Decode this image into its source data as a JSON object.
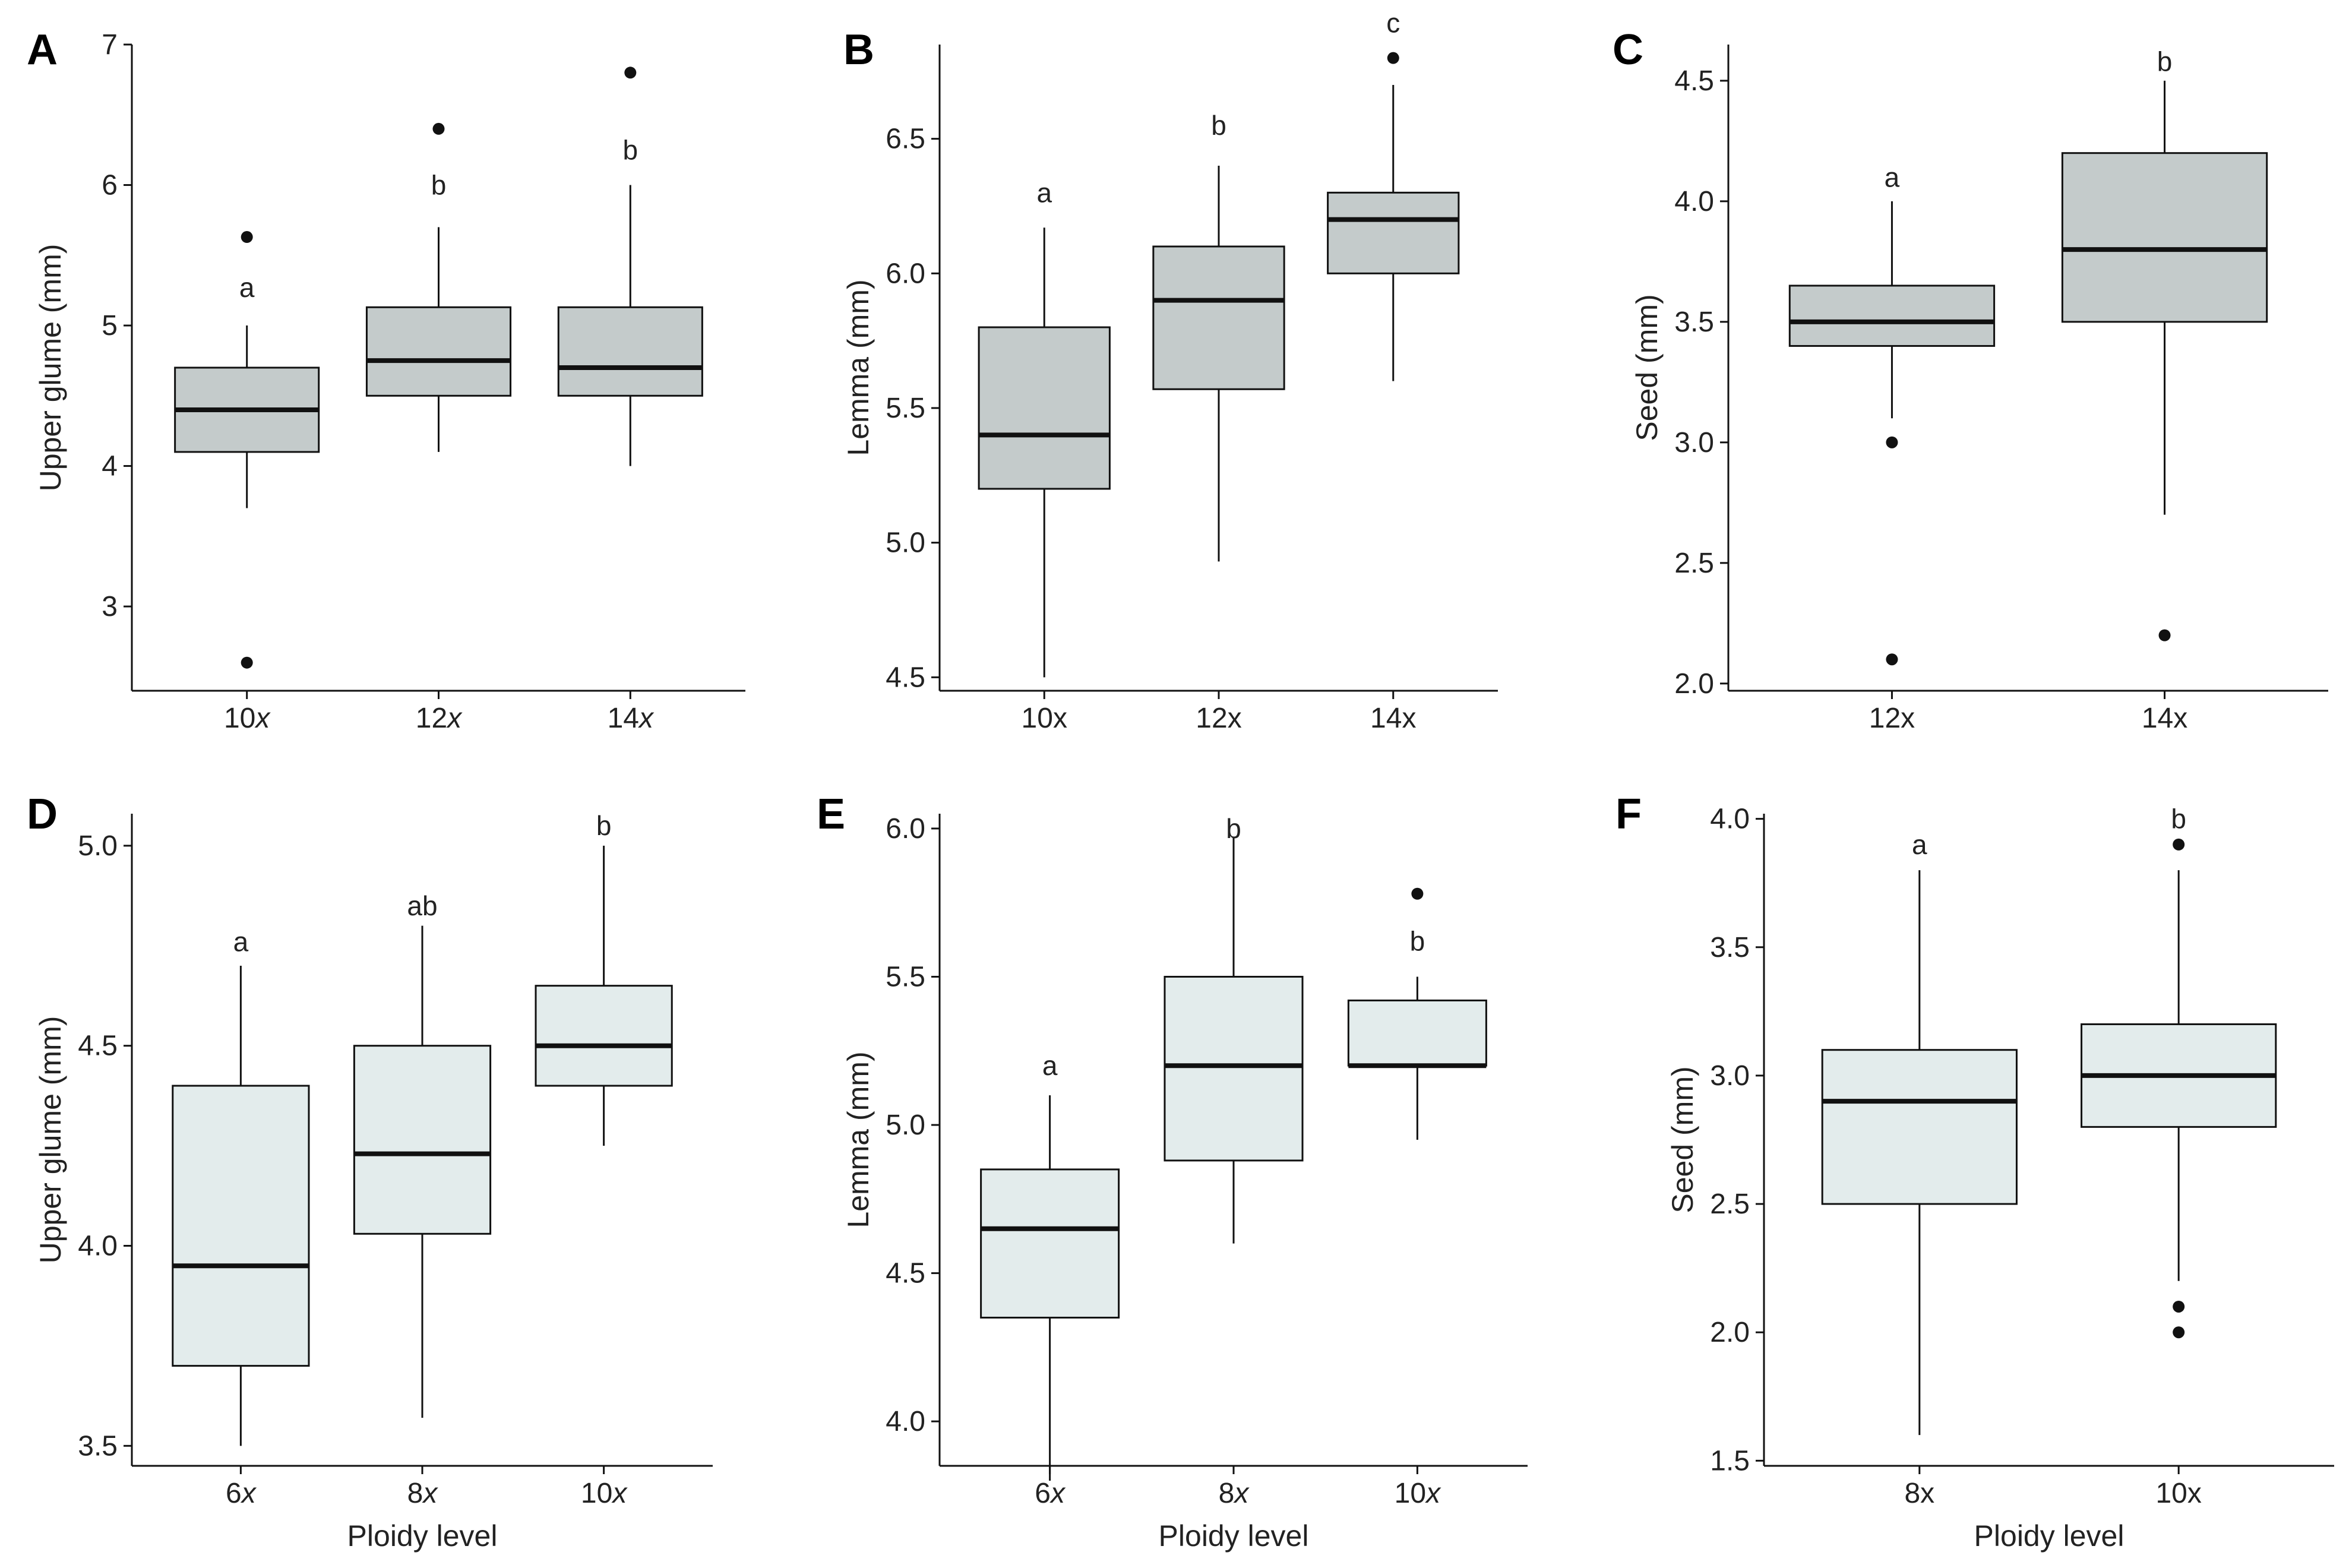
{
  "colors": {
    "top_box_fill": "#c4cbcb",
    "bottom_box_fill": "#e3ecec",
    "stroke": "#111111"
  },
  "chart_data": [
    {
      "type": "box",
      "panel_label": "A",
      "ylabel": "Upper glume (mm)",
      "xlabel": "",
      "ylim": [
        2.4,
        7.0
      ],
      "yticks": [
        3,
        4,
        5,
        6,
        7
      ],
      "ytick_labels": [
        "3",
        "4",
        "5",
        "6",
        "7"
      ],
      "categories": [
        {
          "label": "10",
          "suffix": "x"
        },
        {
          "label": "12",
          "suffix": "x"
        },
        {
          "label": "14",
          "suffix": "x"
        }
      ],
      "boxes": [
        {
          "whisker_low": 3.7,
          "q1": 4.1,
          "median": 4.4,
          "q3": 4.7,
          "whisker_high": 5.0,
          "outliers": [
            5.63,
            2.6
          ],
          "sig": "a",
          "sig_y": 5.27
        },
        {
          "whisker_low": 4.1,
          "q1": 4.5,
          "median": 4.75,
          "q3": 5.13,
          "whisker_high": 5.7,
          "outliers": [
            6.4
          ],
          "sig": "b",
          "sig_y": 6.0
        },
        {
          "whisker_low": 4.0,
          "q1": 4.5,
          "median": 4.7,
          "q3": 5.13,
          "whisker_high": 6.0,
          "outliers": [
            6.8
          ],
          "sig": "b",
          "sig_y": 6.25
        }
      ]
    },
    {
      "type": "box",
      "panel_label": "B",
      "ylabel": "Lemma (mm)",
      "xlabel": "",
      "ylim": [
        4.45,
        6.85
      ],
      "yticks": [
        4.5,
        5.0,
        5.5,
        6.0,
        6.5
      ],
      "ytick_labels": [
        "4.5",
        "5.0",
        "5.5",
        "6.0",
        "6.5"
      ],
      "categories": [
        {
          "label": "10x",
          "suffix": ""
        },
        {
          "label": "12x",
          "suffix": ""
        },
        {
          "label": "14x",
          "suffix": ""
        }
      ],
      "boxes": [
        {
          "whisker_low": 4.5,
          "q1": 5.2,
          "median": 5.4,
          "q3": 5.8,
          "whisker_high": 6.17,
          "outliers": [],
          "sig": "a",
          "sig_y": 6.3
        },
        {
          "whisker_low": 4.93,
          "q1": 5.57,
          "median": 5.9,
          "q3": 6.1,
          "whisker_high": 6.4,
          "outliers": [],
          "sig": "b",
          "sig_y": 6.55
        },
        {
          "whisker_low": 5.6,
          "q1": 6.0,
          "median": 6.2,
          "q3": 6.3,
          "whisker_high": 6.7,
          "outliers": [
            6.8
          ],
          "sig": "c",
          "sig_y": 6.93
        }
      ]
    },
    {
      "type": "box",
      "panel_label": "C",
      "ylabel": "Seed (mm)",
      "xlabel": "",
      "ylim": [
        1.97,
        4.65
      ],
      "yticks": [
        2.0,
        2.5,
        3.0,
        3.5,
        4.0,
        4.5
      ],
      "ytick_labels": [
        "2.0",
        "2.5",
        "3.0",
        "3.5",
        "4.0",
        "4.5"
      ],
      "categories": [
        {
          "label": "12x",
          "suffix": ""
        },
        {
          "label": "14x",
          "suffix": ""
        }
      ],
      "boxes": [
        {
          "whisker_low": 3.1,
          "q1": 3.4,
          "median": 3.5,
          "q3": 3.65,
          "whisker_high": 4.0,
          "outliers": [
            3.0,
            2.1
          ],
          "sig": "a",
          "sig_y": 4.1
        },
        {
          "whisker_low": 2.7,
          "q1": 3.5,
          "median": 3.8,
          "q3": 4.2,
          "whisker_high": 4.5,
          "outliers": [
            2.2
          ],
          "sig": "b",
          "sig_y": 4.58
        }
      ]
    },
    {
      "type": "box",
      "panel_label": "D",
      "ylabel": "Upper glume (mm)",
      "xlabel": "Ploidy level",
      "ylim": [
        3.45,
        5.08
      ],
      "yticks": [
        3.5,
        4.0,
        4.5,
        5.0
      ],
      "ytick_labels": [
        "3.5",
        "4.0",
        "4.5",
        "5.0"
      ],
      "categories": [
        {
          "label": "6",
          "suffix": "x"
        },
        {
          "label": "8",
          "suffix": "x"
        },
        {
          "label": "10",
          "suffix": "x"
        }
      ],
      "boxes": [
        {
          "whisker_low": 3.5,
          "q1": 3.7,
          "median": 3.95,
          "q3": 4.4,
          "whisker_high": 4.7,
          "outliers": [],
          "sig": "a",
          "sig_y": 4.76
        },
        {
          "whisker_low": 3.57,
          "q1": 4.03,
          "median": 4.23,
          "q3": 4.5,
          "whisker_high": 4.8,
          "outliers": [],
          "sig": "ab",
          "sig_y": 4.85
        },
        {
          "whisker_low": 4.25,
          "q1": 4.4,
          "median": 4.5,
          "q3": 4.65,
          "whisker_high": 5.0,
          "outliers": [],
          "sig": "b",
          "sig_y": 5.05
        }
      ]
    },
    {
      "type": "box",
      "panel_label": "E",
      "ylabel": "Lemma (mm)",
      "xlabel": "Ploidy level",
      "ylim": [
        3.85,
        6.05
      ],
      "yticks": [
        4.0,
        4.5,
        5.0,
        5.5,
        6.0
      ],
      "ytick_labels": [
        "4.0",
        "4.5",
        "5.0",
        "5.5",
        "6.0"
      ],
      "categories": [
        {
          "label": "6",
          "suffix": "x"
        },
        {
          "label": "8",
          "suffix": "x"
        },
        {
          "label": "10",
          "suffix": "x"
        }
      ],
      "boxes": [
        {
          "whisker_low": 3.8,
          "q1": 4.35,
          "median": 4.65,
          "q3": 4.85,
          "whisker_high": 5.1,
          "outliers": [],
          "sig": "a",
          "sig_y": 5.2
        },
        {
          "whisker_low": 4.6,
          "q1": 4.88,
          "median": 5.2,
          "q3": 5.5,
          "whisker_high": 5.97,
          "outliers": [],
          "sig": "b",
          "sig_y": 6.0
        },
        {
          "whisker_low": 4.95,
          "q1": 5.2,
          "median": 5.2,
          "q3": 5.42,
          "whisker_high": 5.5,
          "outliers": [
            5.78
          ],
          "sig": "b",
          "sig_y": 5.62
        }
      ]
    },
    {
      "type": "box",
      "panel_label": "F",
      "ylabel": "Seed (mm)",
      "xlabel": "Ploidy level",
      "ylim": [
        1.48,
        4.02
      ],
      "yticks": [
        1.5,
        2.0,
        2.5,
        3.0,
        3.5,
        4.0
      ],
      "ytick_labels": [
        "1.5",
        "2.0",
        "2.5",
        "3.0",
        "3.5",
        "4.0"
      ],
      "categories": [
        {
          "label": "8x",
          "suffix": ""
        },
        {
          "label": "10x",
          "suffix": ""
        }
      ],
      "boxes": [
        {
          "whisker_low": 1.6,
          "q1": 2.5,
          "median": 2.9,
          "q3": 3.1,
          "whisker_high": 3.8,
          "outliers": [],
          "sig": "a",
          "sig_y": 3.9
        },
        {
          "whisker_low": 2.2,
          "q1": 2.8,
          "median": 3.0,
          "q3": 3.2,
          "whisker_high": 3.8,
          "outliers": [
            3.9,
            2.1,
            2.0
          ],
          "sig": "b",
          "sig_y": 4.0
        }
      ]
    }
  ]
}
